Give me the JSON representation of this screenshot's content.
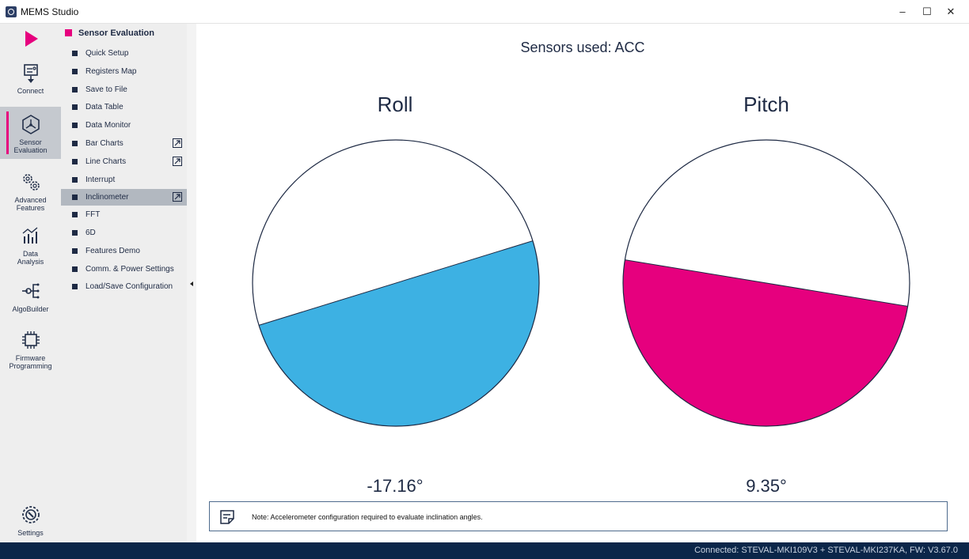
{
  "window": {
    "title": "MEMS Studio",
    "minimize_glyph": "–",
    "maximize_glyph": "☐",
    "close_glyph": "✕"
  },
  "leftnav": {
    "items": [
      {
        "label1": "Connect",
        "label2": "",
        "icon": "connect-icon"
      },
      {
        "label1": "Sensor",
        "label2": "Evaluation",
        "icon": "sensor-evaluation-icon"
      },
      {
        "label1": "Advanced",
        "label2": "Features",
        "icon": "gears-icon"
      },
      {
        "label1": "Data",
        "label2": "Analysis",
        "icon": "data-analysis-icon"
      },
      {
        "label1": "AlgoBuilder",
        "label2": "",
        "icon": "algobuilder-icon"
      },
      {
        "label1": "Firmware",
        "label2": "Programming",
        "icon": "chip-icon"
      },
      {
        "label1": "Settings",
        "label2": "",
        "icon": "settings-icon"
      }
    ]
  },
  "subnav": {
    "header": "Sensor Evaluation",
    "items": [
      {
        "label": "Quick Setup"
      },
      {
        "label": "Registers Map"
      },
      {
        "label": "Save to File"
      },
      {
        "label": "Data Table"
      },
      {
        "label": "Data Monitor"
      },
      {
        "label": "Bar Charts"
      },
      {
        "label": "Line Charts"
      },
      {
        "label": "Interrupt"
      },
      {
        "label": "Inclinometer"
      },
      {
        "label": "FFT"
      },
      {
        "label": "6D"
      },
      {
        "label": "Features Demo"
      },
      {
        "label": "Comm. & Power Settings"
      },
      {
        "label": "Load/Save Configuration"
      }
    ]
  },
  "main": {
    "title": "Sensors used: ACC",
    "roll": {
      "title": "Roll",
      "value_text": "-17.16°",
      "angle_deg": -17.16,
      "color": "#3db1e3"
    },
    "pitch": {
      "title": "Pitch",
      "value_text": "9.35°",
      "angle_deg": 9.35,
      "color": "#e6007e"
    }
  },
  "note": {
    "text": "Note: Accelerometer configuration required to evaluate inclination angles."
  },
  "status": {
    "text": "Connected:  STEVAL-MKI109V3 + STEVAL-MKI237KA, FW: V3.67.0"
  }
}
